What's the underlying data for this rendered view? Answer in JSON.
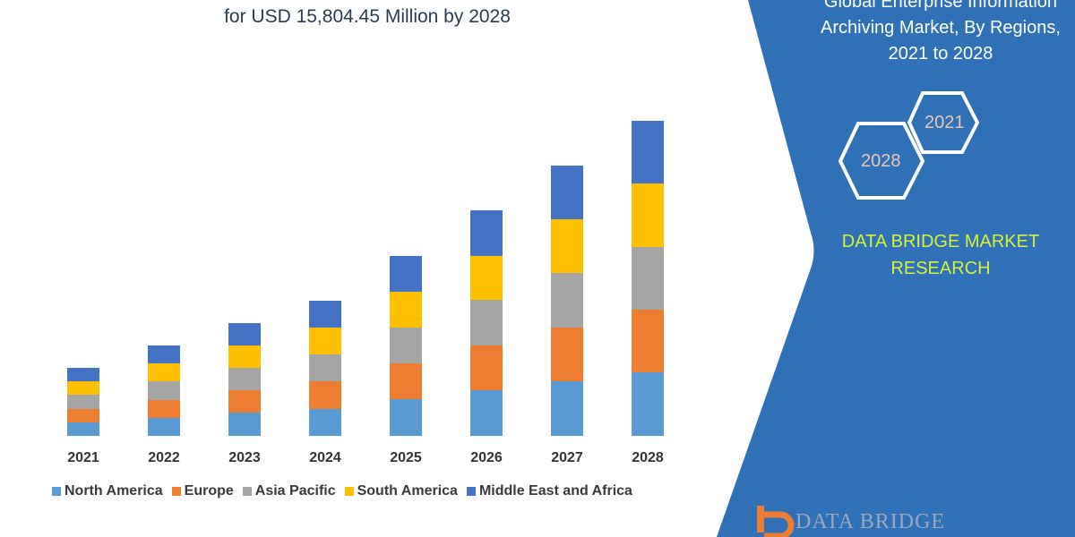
{
  "header": {
    "title_visible_line": "for USD 15,804.45 Million by 2028"
  },
  "side_panel": {
    "title_lines": [
      "Global Enterprise Information",
      "Archiving Market, By Regions,",
      "2021 to 2028"
    ],
    "hex_labels": [
      "2021",
      "2028"
    ],
    "brand_lines": [
      "DATA BRIDGE MARKET",
      "RESEARCH"
    ],
    "logo_text": "DATA BRIDGE",
    "panel_color": "#2f70b6",
    "brand_color": "#d6f23a"
  },
  "chart_data": {
    "type": "bar",
    "stacked": true,
    "categories": [
      "2021",
      "2022",
      "2023",
      "2024",
      "2025",
      "2026",
      "2027",
      "2028"
    ],
    "series": [
      {
        "name": "North America",
        "color": "#5b9bd5",
        "values": [
          15,
          20,
          26,
          30,
          41,
          51,
          61,
          71
        ]
      },
      {
        "name": "Europe",
        "color": "#ed7d31",
        "values": [
          15,
          20,
          25,
          31,
          40,
          50,
          60,
          70
        ]
      },
      {
        "name": "Asia Pacific",
        "color": "#a5a5a5",
        "values": [
          16,
          21,
          25,
          30,
          40,
          51,
          61,
          70
        ]
      },
      {
        "name": "South America",
        "color": "#ffc000",
        "values": [
          15,
          20,
          25,
          30,
          40,
          49,
          60,
          71
        ]
      },
      {
        "name": "Middle East and Africa",
        "color": "#4472c4",
        "values": [
          15,
          20,
          25,
          30,
          40,
          51,
          60,
          70
        ]
      }
    ],
    "xlabel": "",
    "ylabel": "",
    "y_axis_shown": false,
    "grid": false,
    "legend_position": "bottom"
  }
}
